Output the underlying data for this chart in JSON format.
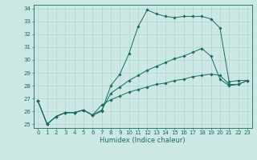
{
  "xlabel": "Humidex (Indice chaleur)",
  "background_color": "#cce8e4",
  "grid_color": "#aacfcb",
  "line_color": "#1a6b60",
  "xlim": [
    -0.5,
    23.5
  ],
  "ylim": [
    24.7,
    34.3
  ],
  "xticks": [
    0,
    1,
    2,
    3,
    4,
    5,
    6,
    7,
    8,
    9,
    10,
    11,
    12,
    13,
    14,
    15,
    16,
    17,
    18,
    19,
    20,
    21,
    22,
    23
  ],
  "yticks": [
    25,
    26,
    27,
    28,
    29,
    30,
    31,
    32,
    33,
    34
  ],
  "line1_x": [
    0,
    1,
    2,
    3,
    4,
    5,
    6,
    7,
    8,
    9,
    10,
    11,
    12,
    13,
    14,
    15,
    16,
    17,
    18,
    19,
    20,
    21,
    22,
    23
  ],
  "line1_y": [
    26.8,
    25.0,
    25.6,
    25.9,
    25.9,
    26.1,
    25.7,
    26.0,
    28.0,
    28.9,
    30.5,
    32.6,
    33.9,
    33.6,
    33.4,
    33.3,
    33.4,
    33.4,
    33.4,
    33.2,
    32.5,
    28.3,
    28.4,
    28.4
  ],
  "line2_x": [
    0,
    1,
    2,
    3,
    4,
    5,
    6,
    7,
    8,
    9,
    10,
    11,
    12,
    13,
    14,
    15,
    16,
    17,
    18,
    19,
    20,
    21,
    22,
    23
  ],
  "line2_y": [
    26.8,
    25.0,
    25.6,
    25.9,
    25.9,
    26.1,
    25.7,
    26.1,
    27.4,
    27.9,
    28.4,
    28.8,
    29.2,
    29.5,
    29.8,
    30.1,
    30.3,
    30.6,
    30.9,
    30.3,
    28.5,
    28.0,
    28.1,
    28.4
  ],
  "line3_x": [
    0,
    1,
    2,
    3,
    4,
    5,
    6,
    7,
    8,
    9,
    10,
    11,
    12,
    13,
    14,
    15,
    16,
    17,
    18,
    19,
    20,
    21,
    22,
    23
  ],
  "line3_y": [
    26.8,
    25.0,
    25.6,
    25.9,
    25.9,
    26.1,
    25.7,
    26.5,
    26.9,
    27.2,
    27.5,
    27.7,
    27.9,
    28.1,
    28.2,
    28.4,
    28.5,
    28.7,
    28.8,
    28.9,
    28.8,
    28.1,
    28.1,
    28.4
  ],
  "tick_fontsize": 5.0,
  "xlabel_fontsize": 6.0,
  "marker_size": 1.8,
  "linewidth": 0.7
}
